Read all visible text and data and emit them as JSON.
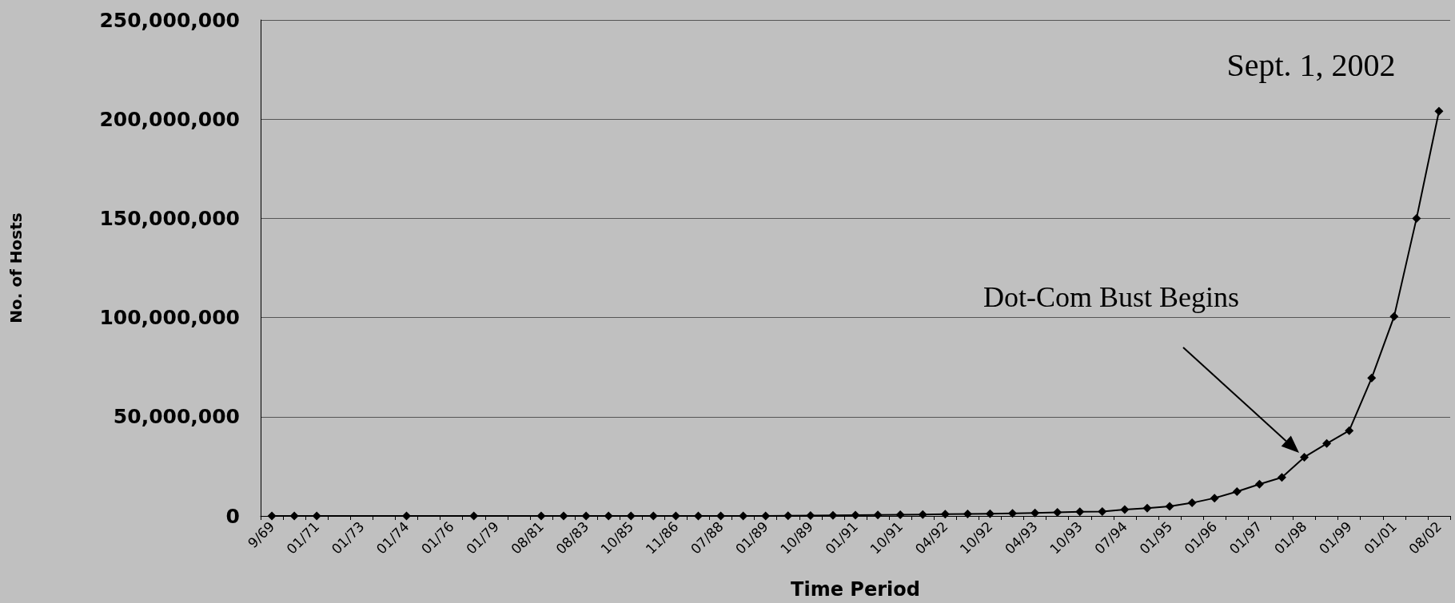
{
  "chart_data": {
    "type": "line",
    "xlabel": "Time Period",
    "ylabel": "No. of Hosts",
    "categories": [
      "9/69",
      null,
      "01/71",
      null,
      "01/73",
      null,
      "01/74",
      null,
      "01/76",
      null,
      "01/79",
      null,
      "08/81",
      null,
      "08/83",
      null,
      "10/85",
      null,
      "11/86",
      null,
      "07/88",
      null,
      "01/89",
      null,
      "10/89",
      null,
      "01/91",
      null,
      "10/91",
      null,
      "04/92",
      null,
      "10/92",
      null,
      "04/93",
      null,
      "10/93",
      null,
      "07/94",
      null,
      "01/95",
      null,
      "01/96",
      null,
      "01/97",
      null,
      "01/98",
      null,
      "01/99",
      null,
      "01/01",
      null,
      "08/02"
    ],
    "series": [
      {
        "color": "#000000",
        "values": [
          0,
          0,
          0,
          null,
          null,
          null,
          0,
          null,
          null,
          0,
          null,
          null,
          0,
          0,
          0,
          0,
          0,
          0,
          0,
          0,
          0,
          0,
          0,
          100000,
          200000,
          300000,
          400000,
          500000,
          600000,
          700000,
          900000,
          1000000,
          1100000,
          1300000,
          1500000,
          1800000,
          2100000,
          2200000,
          3200000,
          3900000,
          4800000,
          6600000,
          9000000,
          12300000,
          16000000,
          19400000,
          29600000,
          36500000,
          43000000,
          69500000,
          100500000,
          150000000,
          204000000
        ]
      }
    ],
    "ylim": [
      0,
      250000000
    ],
    "yticks": [
      {
        "value": 0,
        "label": "0"
      },
      {
        "value": 50000000,
        "label": "50,000,000"
      },
      {
        "value": 100000000,
        "label": "100,000,000"
      },
      {
        "value": 150000000,
        "label": "150,000,000"
      },
      {
        "value": 200000000,
        "label": "200,000,000"
      },
      {
        "value": 250000000,
        "label": "250,000,000"
      }
    ],
    "grid": "y",
    "marker": "diamond",
    "line_style": "solid",
    "annotations": [
      {
        "text": "Sept. 1, 2002",
        "x": "08/02",
        "y": 204000000
      },
      "Dot-Com Bust Begins"
    ]
  }
}
